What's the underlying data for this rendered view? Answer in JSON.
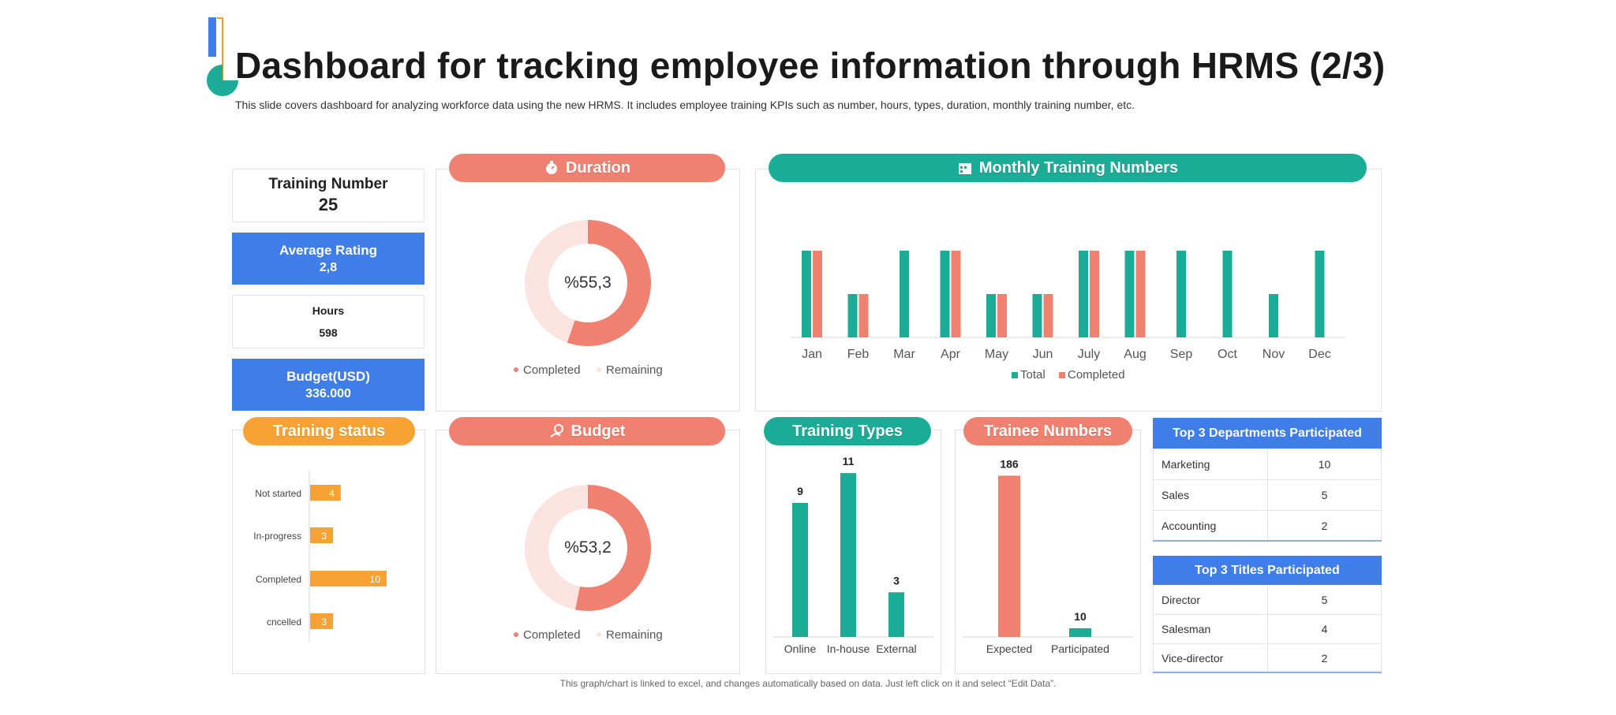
{
  "header": {
    "title": "Dashboard for tracking employee information through HRMS (2/3)",
    "subtitle": "This slide covers dashboard for analyzing workforce data using the new HRMS. It includes employee training KPIs such as number, hours, types, duration, monthly training number, etc."
  },
  "kpis": {
    "training_number": {
      "label": "Training Number",
      "value": "25"
    },
    "average_rating": {
      "label": "Average Rating",
      "value": "2,8"
    },
    "hours": {
      "label": "Hours",
      "value": "598"
    },
    "budget_usd": {
      "label": "Budget(USD)",
      "value": "336.000"
    }
  },
  "panels": {
    "duration": "Duration",
    "monthly": "Monthly Training Numbers",
    "training_status": "Training status",
    "budget": "Budget",
    "training_types": "Training Types",
    "trainee_numbers": "Trainee Numbers"
  },
  "colors": {
    "coral": "#f0806f",
    "teal": "#1bac98",
    "orange": "#f6a334",
    "blue": "#3f7de8",
    "pink_light": "#fbe3e0"
  },
  "icons": {
    "duration": "stopwatch-icon",
    "monthly": "calendar-icon",
    "budget": "money-hand-icon"
  },
  "chart_data": [
    {
      "id": "duration",
      "type": "pie",
      "center_label": "%55,3",
      "slices": [
        {
          "name": "Completed",
          "value": 55.3
        },
        {
          "name": "Remaining",
          "value": 44.7
        }
      ],
      "legend": [
        "Completed",
        "Remaining"
      ]
    },
    {
      "id": "monthly",
      "type": "bar",
      "categories": [
        "Jan",
        "Feb",
        "Mar",
        "Apr",
        "May",
        "Jun",
        "July",
        "Aug",
        "Sep",
        "Oct",
        "Nov",
        "Dec"
      ],
      "series": [
        {
          "name": "Total",
          "values": [
            2,
            1,
            2,
            2,
            1,
            1,
            2,
            2,
            2,
            2,
            1,
            2
          ]
        },
        {
          "name": "Completed",
          "values": [
            2,
            1,
            null,
            2,
            1,
            1,
            2,
            2,
            null,
            null,
            null,
            null
          ]
        }
      ],
      "ylim": [
        0,
        2.2
      ],
      "legend": [
        "Total",
        "Completed"
      ]
    },
    {
      "id": "training_status",
      "type": "bar",
      "orientation": "horizontal",
      "categories": [
        "Not started",
        "In-progress",
        "Completed",
        "cncelled"
      ],
      "values": [
        4,
        3,
        10,
        3
      ],
      "xlim": [
        0,
        20
      ]
    },
    {
      "id": "budget",
      "type": "pie",
      "center_label": "%53,2",
      "slices": [
        {
          "name": "Completed",
          "value": 53.2
        },
        {
          "name": "Remaining",
          "value": 46.8
        }
      ],
      "legend": [
        "Completed",
        "Remaining"
      ]
    },
    {
      "id": "training_types",
      "type": "bar",
      "categories": [
        "Online",
        "In-house",
        "External"
      ],
      "values": [
        9,
        11,
        3
      ],
      "ylim": [
        0,
        12
      ]
    },
    {
      "id": "trainee_numbers",
      "type": "bar",
      "categories": [
        "Expected",
        "Participated"
      ],
      "values": [
        186,
        10
      ],
      "ylim": [
        0,
        200
      ]
    },
    {
      "id": "top_departments",
      "type": "table",
      "title": "Top 3 Departments Participated",
      "rows": [
        [
          "Marketing",
          "10"
        ],
        [
          "Sales",
          "5"
        ],
        [
          "Accounting",
          "2"
        ]
      ]
    },
    {
      "id": "top_titles",
      "type": "table",
      "title": "Top 3 Titles Participated",
      "rows": [
        [
          "Director",
          "5"
        ],
        [
          "Salesman",
          "4"
        ],
        [
          "Vice-director",
          "2"
        ]
      ]
    }
  ],
  "footer": "This graph/chart is linked to excel, and changes automatically based on data. Just left click on it and select “Edit Data”."
}
